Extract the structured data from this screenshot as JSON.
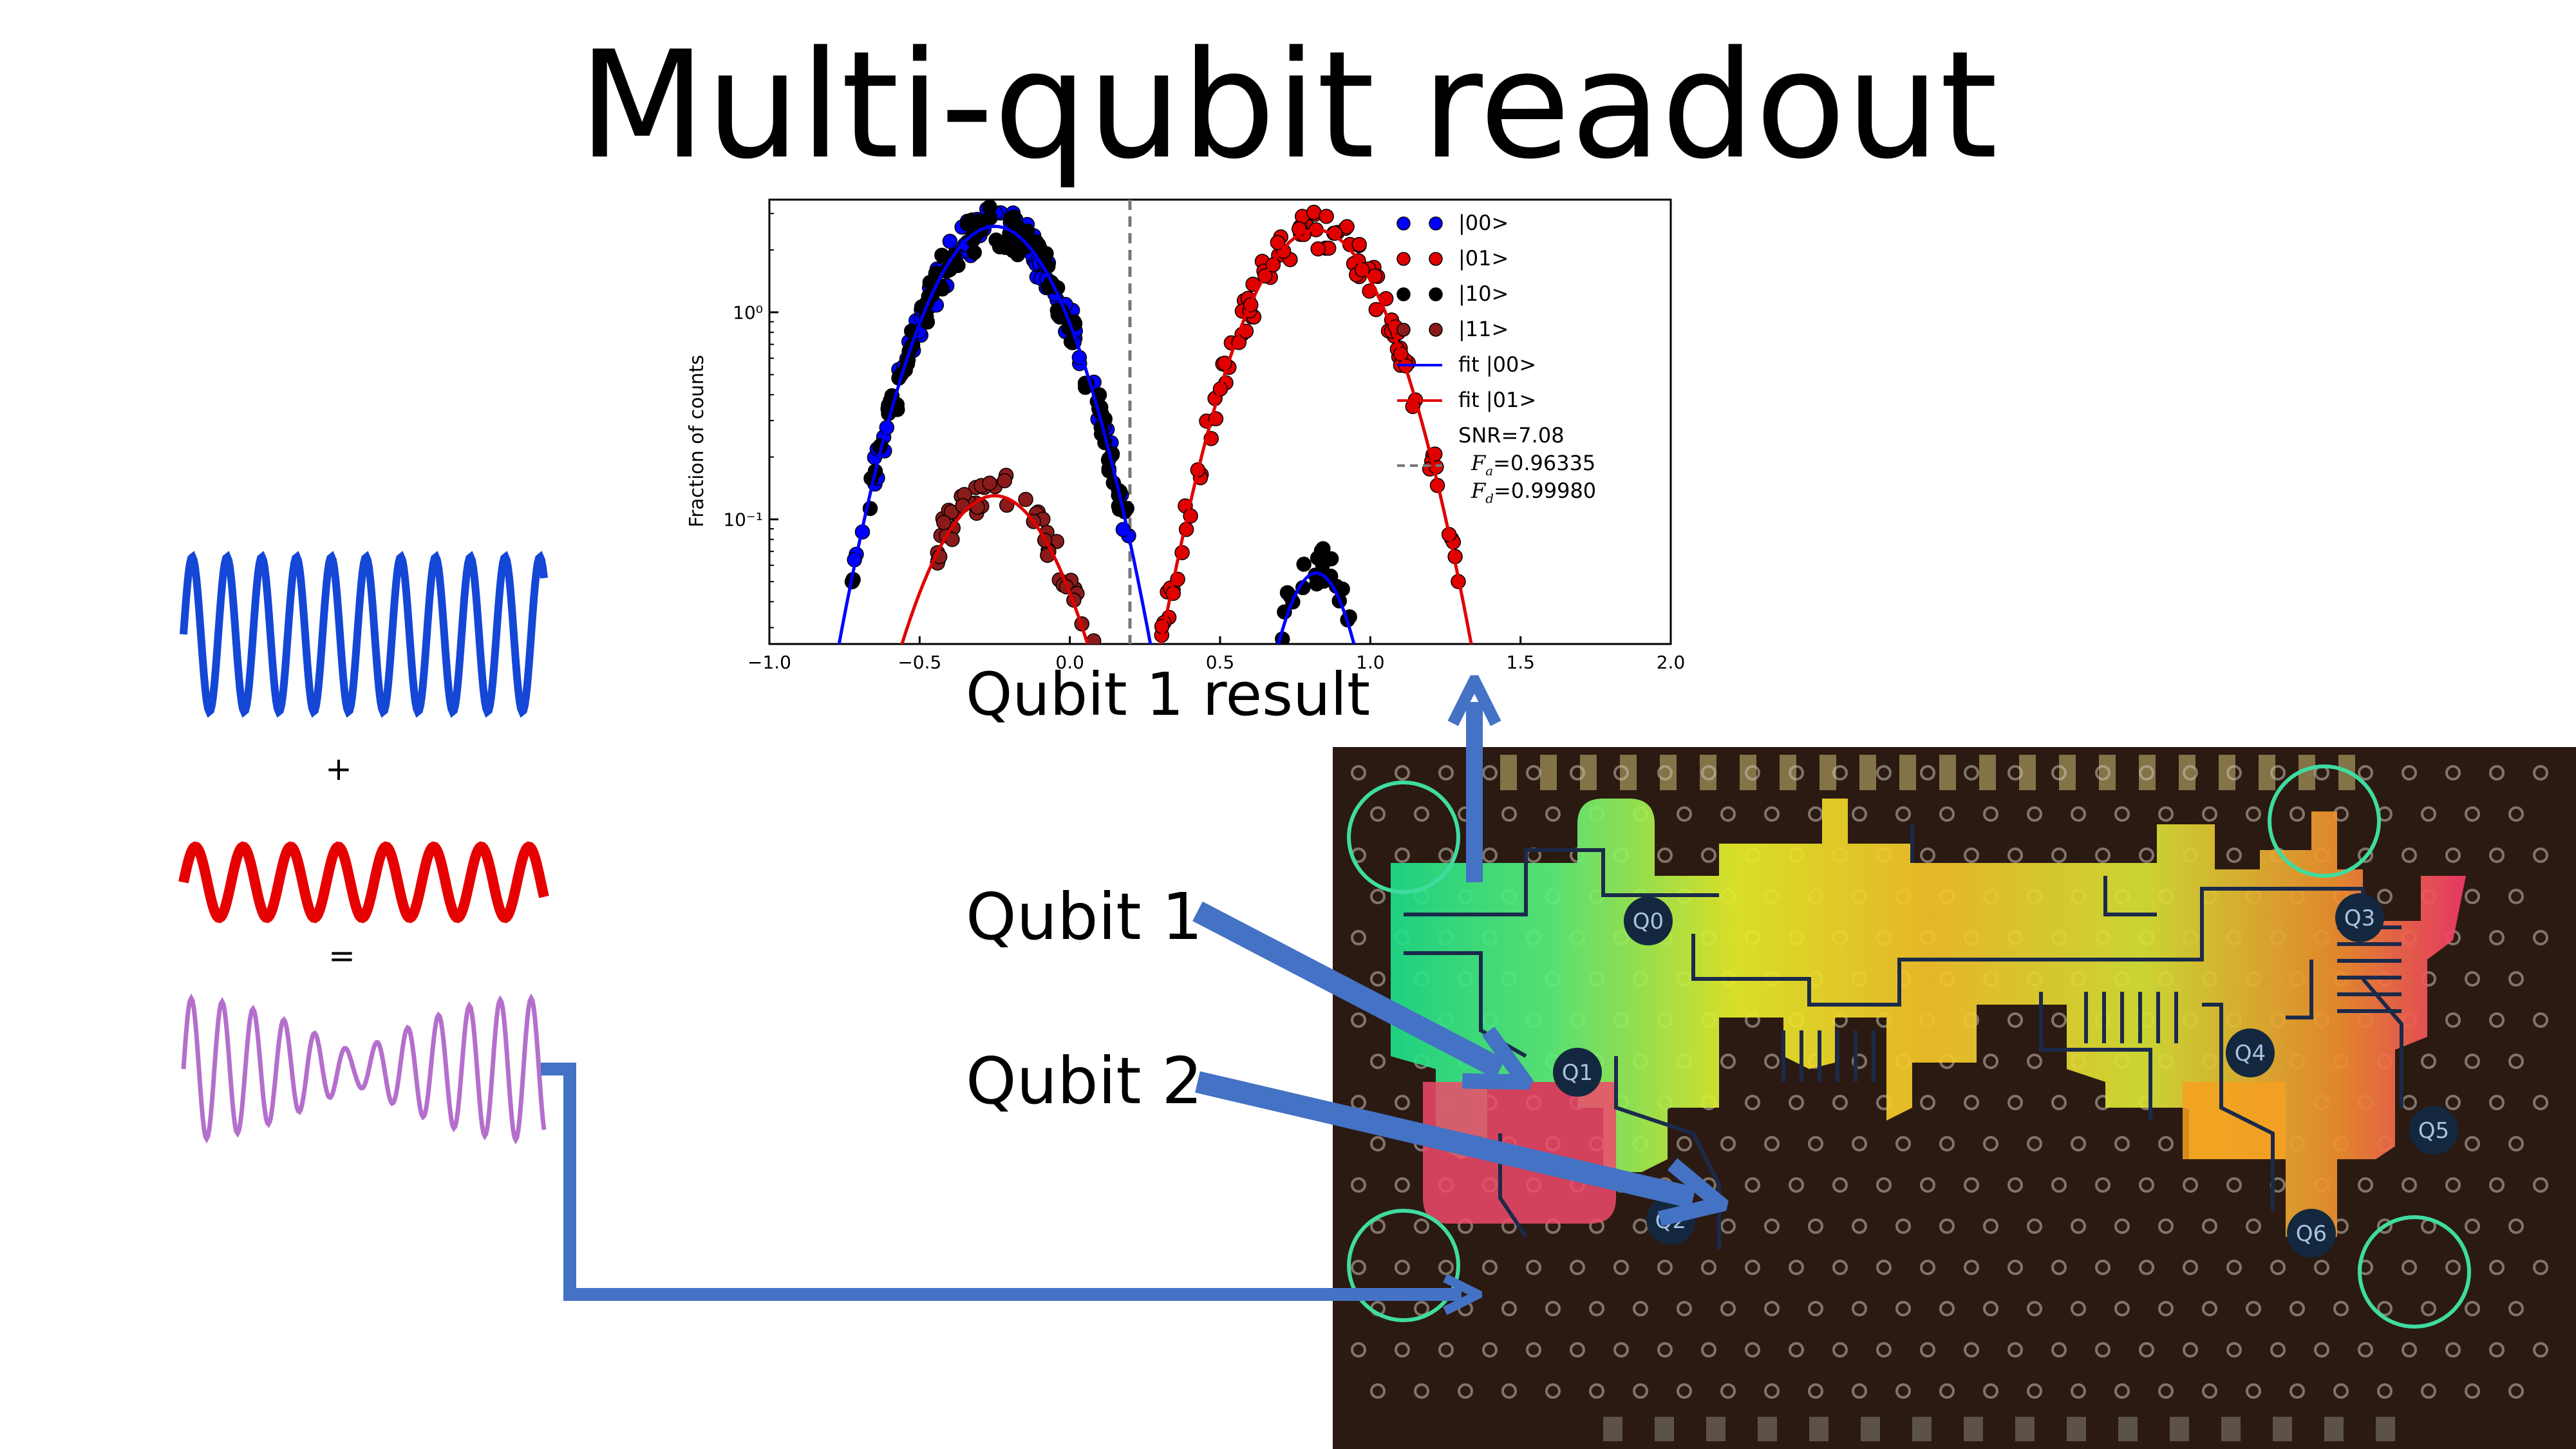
{
  "slide": {
    "title": "Multi-qubit readout",
    "chart_caption": "Qubit 1 result",
    "plus_sign": "+",
    "equals_sign": "=",
    "qubit1_label": "Qubit 1",
    "qubit2_label": "Qubit 2"
  },
  "waves": {
    "colors": {
      "signal1": "#1447d6",
      "signal2": "#e60000",
      "sum": "#b46fcc"
    }
  },
  "chip": {
    "qubit_labels": [
      "Q0",
      "Q1",
      "Q2",
      "Q3",
      "Q4",
      "Q5",
      "Q6"
    ],
    "colors": {
      "board": "#2b1a12",
      "qubit": "#13283f",
      "circle": "#3fdca0",
      "arrow": "#4472c4"
    }
  },
  "chart_data": {
    "type": "scatter",
    "ylabel": "Fraction of counts",
    "xlim": [
      -1.0,
      2.0
    ],
    "ylim": [
      0.025,
      3.5
    ],
    "yscale": "log",
    "xticks": [
      "−1.0",
      "−0.5",
      "0.0",
      "0.5",
      "1.0",
      "1.5",
      "2.0"
    ],
    "yticks": [
      "10⁰",
      "10⁻¹"
    ],
    "threshold_x": 0.2,
    "legend_position": "top-right",
    "legend": [
      {
        "label": "|00>",
        "color": "#0000ff",
        "kind": "dots"
      },
      {
        "label": "|01>",
        "color": "#e00000",
        "kind": "dots"
      },
      {
        "label": "|10>",
        "color": "#000000",
        "kind": "dots"
      },
      {
        "label": "|11>",
        "color": "#8b1a1a",
        "kind": "dots"
      },
      {
        "label": "fit |00>",
        "color": "#0000ff",
        "kind": "line"
      },
      {
        "label": "fit |01>",
        "color": "#e00000",
        "kind": "line"
      }
    ],
    "stats": {
      "snr": "SNR=7.08",
      "fa": "=0.96335",
      "fd": "=0.99980",
      "fa_symbol": "F",
      "fa_sub": "a",
      "fd_symbol": "F",
      "fd_sub": "d"
    },
    "series": [
      {
        "name": "|00>",
        "color": "#0000ff",
        "mu": -0.25,
        "sigma": 0.17,
        "amp": 2.6,
        "xrange": [
          -0.73,
          0.2
        ]
      },
      {
        "name": "|01>",
        "color": "#e00000",
        "mu": 0.82,
        "sigma": 0.17,
        "amp": 2.5,
        "xrange": [
          0.28,
          1.3
        ]
      },
      {
        "name": "|10>",
        "color": "#000000",
        "mu": -0.25,
        "sigma": 0.17,
        "amp": 2.6,
        "xrange": [
          -0.73,
          0.2
        ],
        "secondary": {
          "mu": 0.82,
          "sigma": 0.1,
          "amp": 0.06,
          "xrange": [
            0.6,
            1.05
          ]
        }
      },
      {
        "name": "|11>",
        "color": "#8b1a1a",
        "mu": -0.25,
        "sigma": 0.17,
        "amp": 0.14,
        "xrange": [
          -0.45,
          0.35
        ]
      }
    ],
    "fits": [
      {
        "name": "fit |00>",
        "color": "#0000ff",
        "components": [
          {
            "mu": -0.25,
            "sigma": 0.17,
            "amp": 2.6
          },
          {
            "mu": 0.82,
            "sigma": 0.1,
            "amp": 0.055
          }
        ]
      },
      {
        "name": "fit |01>",
        "color": "#e00000",
        "components": [
          {
            "mu": 0.82,
            "sigma": 0.17,
            "amp": 2.5
          },
          {
            "mu": -0.25,
            "sigma": 0.17,
            "amp": 0.13
          }
        ]
      }
    ]
  }
}
